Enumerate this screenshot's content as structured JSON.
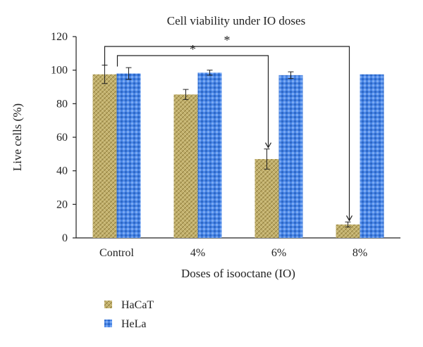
{
  "chart_data": {
    "type": "bar",
    "title": "Cell viability under IO doses",
    "xlabel": "Doses of isooctane (IO)",
    "ylabel": "Live cells (%)",
    "categories": [
      "Control",
      "4%",
      "6%",
      "8%"
    ],
    "ylim": [
      0,
      120
    ],
    "yticks": [
      0,
      20,
      40,
      60,
      80,
      100,
      120
    ],
    "grid": false,
    "legend_position": "bottom-left",
    "series": [
      {
        "name": "HaCaT",
        "values": [
          97.5,
          85.5,
          47,
          8
        ],
        "errors": [
          5.5,
          3,
          6,
          1.5
        ],
        "color": "#bfae6a"
      },
      {
        "name": "HeLa",
        "values": [
          98,
          98.5,
          97,
          97.5
        ],
        "errors": [
          3.5,
          1.5,
          2,
          0
        ],
        "color": "#3f7fe0"
      }
    ],
    "annotations": [
      {
        "text": "*",
        "from": "Control",
        "to": "6%",
        "series": "HaCaT"
      },
      {
        "text": "*",
        "from": "Control",
        "to": "8%",
        "series": "HaCaT"
      }
    ]
  }
}
